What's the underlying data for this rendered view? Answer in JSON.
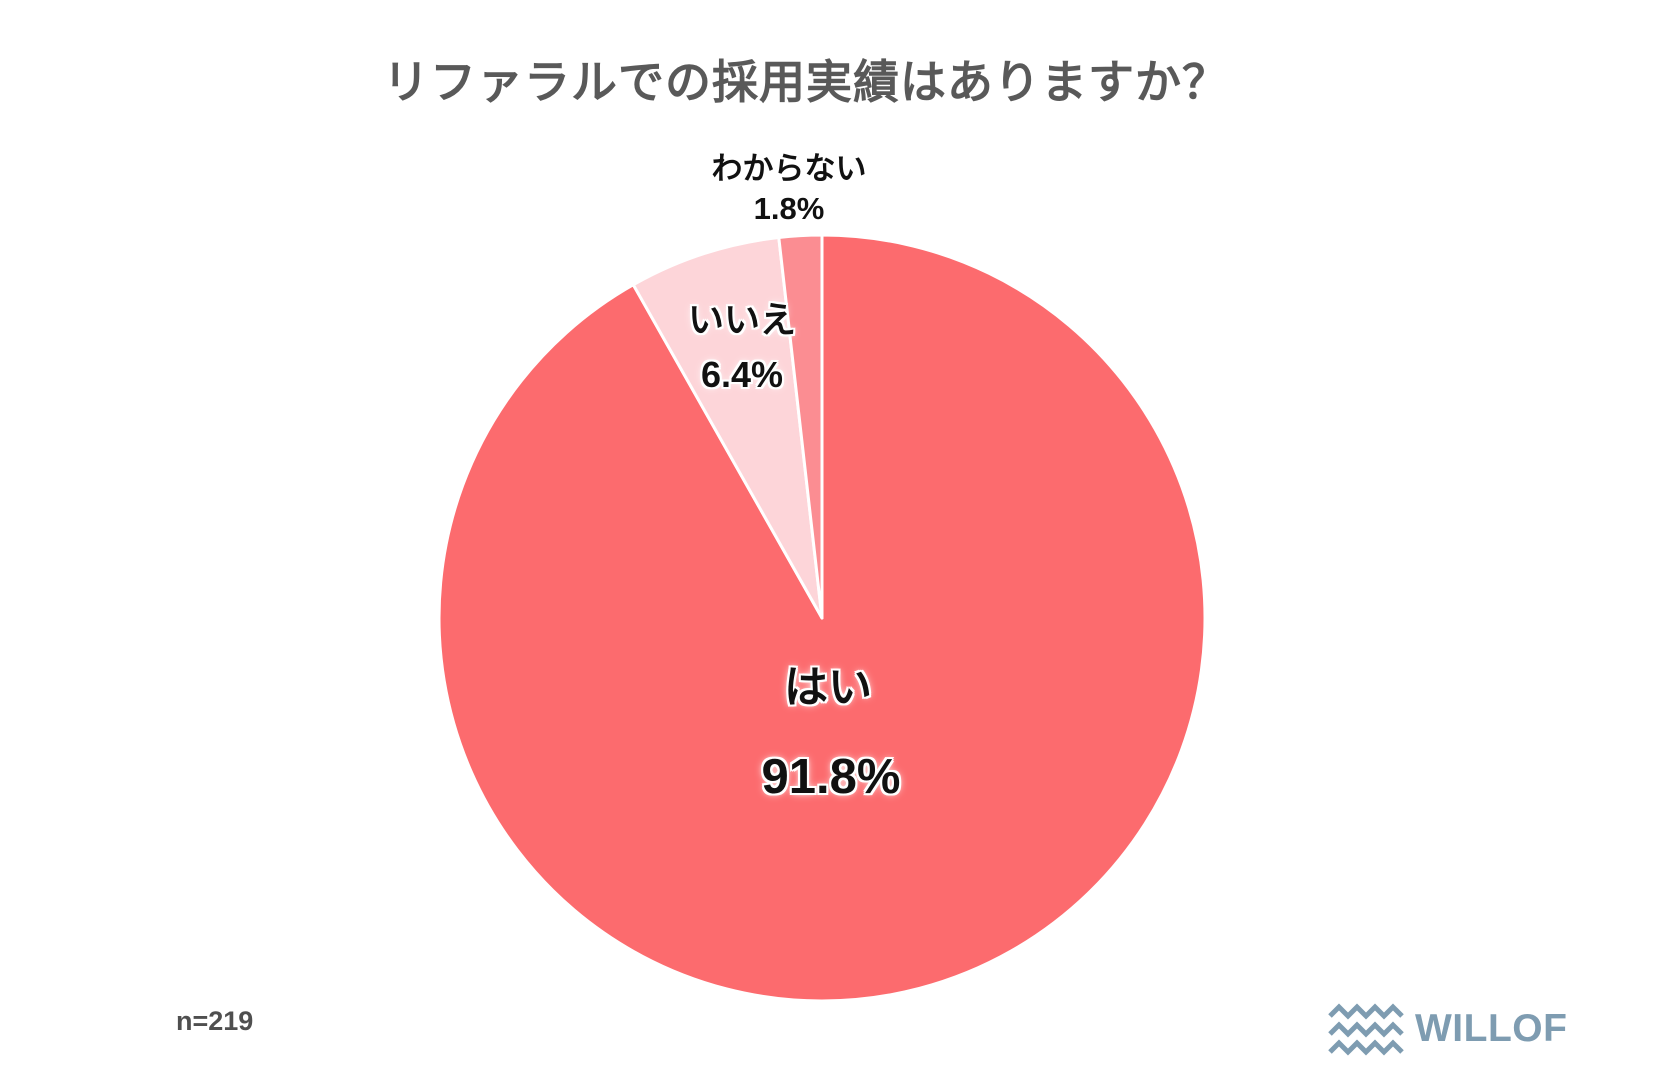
{
  "title": "リファラルでの採用実績はありますか？",
  "sample_size": "n=219",
  "chart_data": {
    "type": "pie",
    "title": "リファラルでの採用実績はありますか？",
    "categories": [
      "はい",
      "いいえ",
      "わからない"
    ],
    "values": [
      91.8,
      6.4,
      1.8
    ],
    "unit": "%",
    "sample_size_note": "n=219",
    "slice_ids": [
      "yes",
      "no",
      "unknown"
    ],
    "colors": [
      "#FC6B6E",
      "#FDD5D9",
      "#FB8D92"
    ],
    "separator_color": "#FFFFFF",
    "start_angle_deg": 0,
    "direction": "clockwise",
    "legend": "none",
    "labels": [
      {
        "name": "はい",
        "percent": "91.8%",
        "placement": "inside"
      },
      {
        "name": "いいえ",
        "percent": "6.4%",
        "placement": "inside"
      },
      {
        "name": "わからない",
        "percent": "1.8%",
        "placement": "outside-top"
      }
    ]
  },
  "logo": {
    "text": "WILLOF",
    "color": "#7E9CB1",
    "icon": "waves-icon"
  }
}
